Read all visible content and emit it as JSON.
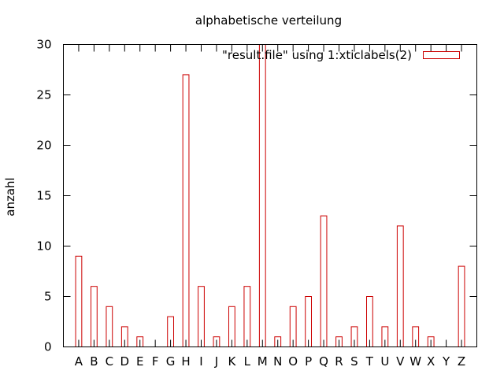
{
  "chart_data": {
    "type": "bar",
    "title": "alphabetische verteilung",
    "xlabel": "",
    "ylabel": "anzahl",
    "ylim": [
      0,
      30
    ],
    "yticks": [
      0,
      5,
      10,
      15,
      20,
      25,
      30
    ],
    "categories": [
      "A",
      "B",
      "C",
      "D",
      "E",
      "F",
      "G",
      "H",
      "I",
      "J",
      "K",
      "L",
      "M",
      "N",
      "O",
      "P",
      "Q",
      "R",
      "S",
      "T",
      "U",
      "V",
      "W",
      "X",
      "Y",
      "Z"
    ],
    "series": [
      {
        "name": "\"result.file\" using 1:xticlabels(2)",
        "color": "#cc0000",
        "values": [
          9,
          6,
          4,
          2,
          1,
          0,
          3,
          27,
          6,
          1,
          4,
          6,
          30,
          1,
          4,
          5,
          13,
          1,
          2,
          5,
          2,
          12,
          2,
          1,
          0,
          8
        ]
      }
    ],
    "legend_position": "top-right",
    "grid": false
  }
}
